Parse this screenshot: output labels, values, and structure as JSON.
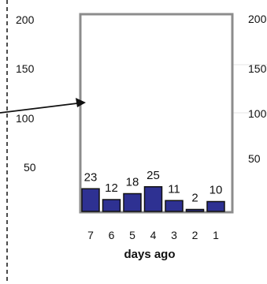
{
  "chart_data": {
    "type": "bar",
    "categories": [
      "7",
      "6",
      "5",
      "4",
      "3",
      "2",
      "1"
    ],
    "values": [
      23,
      12,
      18,
      25,
      11,
      2,
      10
    ],
    "data_labels": [
      "23",
      "12",
      "18",
      "25",
      "11",
      "2",
      "10"
    ],
    "title": "",
    "xlabel": "days ago",
    "ylabel": "",
    "ylim": [
      0,
      200
    ],
    "y_ticks_left": [
      "200",
      "150",
      "100",
      "50"
    ],
    "y_ticks_right": [
      "200",
      "150",
      "100",
      "50"
    ],
    "grid": false,
    "colors": {
      "bar_fill": "#2e3192",
      "bar_stroke": "#111111",
      "frame": "#8c8c8c",
      "guide_line": "#e6e6e6",
      "arrow": "#111111",
      "dashed_line": "#111111"
    }
  }
}
